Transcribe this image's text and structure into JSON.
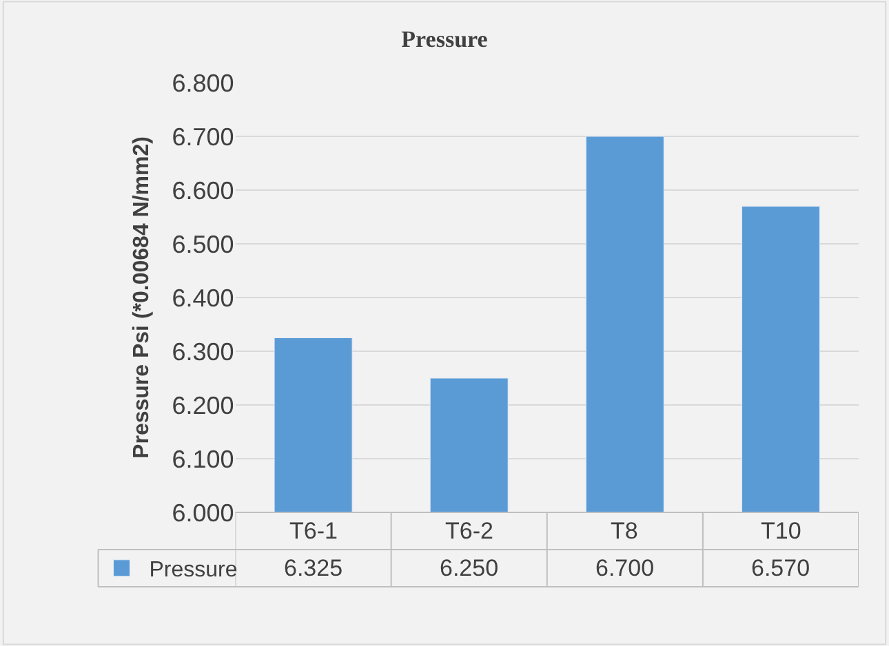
{
  "chart_data": {
    "type": "bar",
    "title": "Pressure",
    "ylabel": "Pressure Psi (*0.00684 N/mm2)",
    "categories": [
      "T6-1",
      "T6-2",
      "T8",
      "T10"
    ],
    "series": [
      {
        "name": "Pressure",
        "color": "#5b9bd5",
        "values": [
          6.325,
          6.25,
          6.7,
          6.57
        ],
        "value_labels": [
          "6.325",
          "6.250",
          "6.700",
          "6.570"
        ]
      }
    ],
    "ylim": [
      6,
      6.8
    ],
    "yticks": [
      {
        "value": 6,
        "label": "6.000"
      },
      {
        "value": 6.1,
        "label": "6.100"
      },
      {
        "value": 6.2,
        "label": "6.200"
      },
      {
        "value": 6.3,
        "label": "6.300"
      },
      {
        "value": 6.4,
        "label": "6.400"
      },
      {
        "value": 6.5,
        "label": "6.500"
      },
      {
        "value": 6.6,
        "label": "6.600"
      },
      {
        "value": 6.7,
        "label": "6.700"
      },
      {
        "value": 6.8,
        "label": "6.800"
      }
    ],
    "grid": "y",
    "legend": "bottom left"
  }
}
